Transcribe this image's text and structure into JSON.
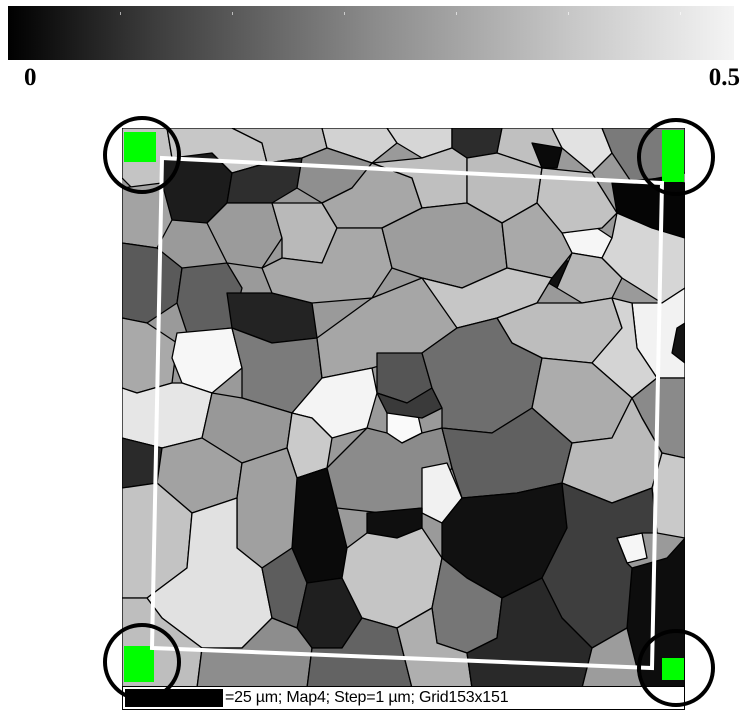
{
  "colorbar": {
    "min_label": "0",
    "max_label": "0.5",
    "gradient": [
      "#000000",
      "#f4f4f4"
    ]
  },
  "map": {
    "type": "grain-orientation-map",
    "grid": "153x151",
    "boundary_color": "#000000",
    "corner_marker_color": "#00ff00",
    "frame_color": "#ffffff"
  },
  "scalebar": {
    "text": "=25 µm; Map4; Step=1 µm; Grid153x151"
  },
  "markers": {
    "circle_color": "#000000",
    "count": 4
  }
}
